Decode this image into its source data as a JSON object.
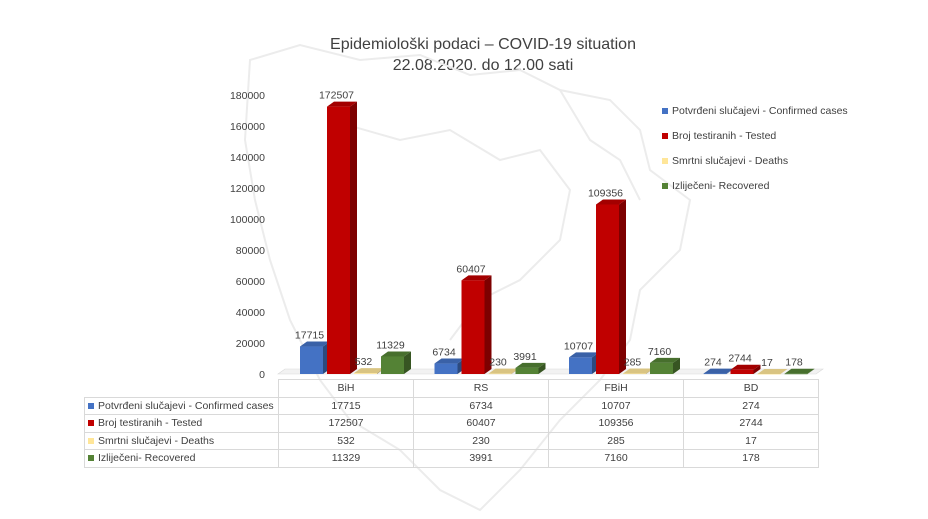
{
  "chart_data": {
    "type": "bar",
    "title": "Epidemiološki podaci – COVID-19 situation",
    "subtitle": "22.08.2020. do 12.00 sati",
    "categories": [
      "BiH",
      "RS",
      "FBiH",
      "BD"
    ],
    "ylim": [
      0,
      180000
    ],
    "yticks": [
      "0",
      "20000",
      "40000",
      "60000",
      "80000",
      "100000",
      "120000",
      "140000",
      "160000",
      "180000"
    ],
    "legend_position": "right",
    "series": [
      {
        "name": "Potvrđeni slučajevi - Confirmed cases",
        "color": "#4472c4",
        "values": [
          17715,
          6734,
          10707,
          274
        ]
      },
      {
        "name": "Broj testiranih - Tested",
        "color": "#c00000",
        "values": [
          172507,
          60407,
          109356,
          2744
        ]
      },
      {
        "name": "Smrtni slučajevi - Deaths",
        "color": "#ffe699",
        "values": [
          532,
          230,
          285,
          17
        ]
      },
      {
        "name": "Izliječeni- Recovered",
        "color": "#548235",
        "values": [
          11329,
          3991,
          7160,
          178
        ]
      }
    ]
  }
}
